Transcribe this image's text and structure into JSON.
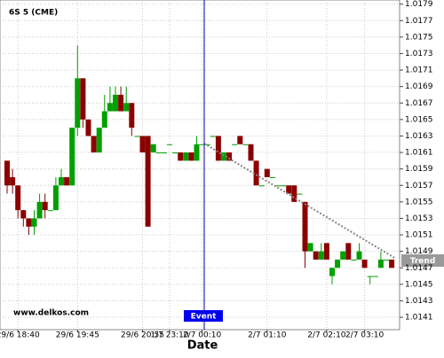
{
  "chart_data": {
    "type": "candlestick",
    "title": "6S 5 (CME)",
    "x_label": "Date",
    "watermark": "www.delkos.com",
    "event_label": "Event",
    "trend_label": "Trend",
    "up_color": "#00a000",
    "down_color": "#8b0000",
    "grid": true,
    "categories": [
      null,
      null,
      "29/6 18:40",
      null,
      null,
      null,
      null,
      null,
      null,
      null,
      null,
      null,
      null,
      "29/6 19:45",
      null,
      null,
      null,
      null,
      null,
      null,
      null,
      null,
      null,
      null,
      null,
      "29/6 20:55",
      null,
      null,
      null,
      null,
      "1/7 23:10",
      null,
      null,
      null,
      null,
      null,
      "2/7 00:10",
      null,
      null,
      null,
      null,
      null,
      null,
      null,
      null,
      null,
      null,
      null,
      "2/7 01:10",
      null,
      null,
      null,
      null,
      null,
      null,
      null,
      null,
      null,
      null,
      "2/7 02:10",
      null,
      null,
      null,
      null,
      null,
      null,
      "2/7 03:10",
      null,
      null,
      null,
      null,
      null
    ],
    "open": [
      1.016,
      1.0158,
      1.0157,
      1.0154,
      1.0153,
      1.0152,
      1.0153,
      1.0155,
      1.0154,
      1.0154,
      1.0157,
      1.0158,
      1.0157,
      1.0164,
      1.017,
      1.0165,
      1.0163,
      1.0161,
      1.0164,
      1.0166,
      1.0166,
      1.0168,
      1.0166,
      1.0167,
      1.0163,
      1.0163,
      1.0163,
      1.0161,
      1.0161,
      1.0161,
      1.0162,
      1.0161,
      1.0161,
      1.016,
      1.0161,
      1.016,
      1.0162,
      1.0162,
      1.0163,
      1.0163,
      1.016,
      1.0161,
      1.0162,
      1.0163,
      1.0162,
      1.0162,
      1.016,
      1.0157,
      1.0159,
      1.0158,
      1.0157,
      1.0157,
      1.0157,
      1.0157,
      1.0156,
      1.0155,
      1.0149,
      1.0149,
      1.0148,
      1.015,
      1.0146,
      1.0147,
      1.0148,
      1.015,
      1.0148,
      1.0148,
      1.0148,
      1.0146,
      1.0146,
      1.0147,
      1.0148,
      1.0148
    ],
    "high": [
      1.016,
      1.0159,
      1.0157,
      1.0154,
      1.0153,
      1.0154,
      1.0156,
      1.0156,
      1.0154,
      1.0158,
      1.0159,
      1.0158,
      1.0164,
      1.0174,
      1.017,
      1.0165,
      1.0163,
      1.0164,
      1.0168,
      1.0169,
      1.0169,
      1.0169,
      1.0169,
      1.0167,
      1.0163,
      1.0163,
      1.0163,
      1.0162,
      1.0161,
      1.0161,
      1.0162,
      1.0161,
      1.0161,
      1.0161,
      1.0161,
      1.0163,
      1.0162,
      1.0162,
      1.0163,
      1.0163,
      1.0161,
      1.0161,
      1.0162,
      1.0163,
      1.0162,
      1.0162,
      1.016,
      1.0157,
      1.0159,
      1.0158,
      1.0157,
      1.0157,
      1.0157,
      1.0157,
      1.0156,
      1.0155,
      1.015,
      1.0149,
      1.015,
      1.015,
      1.0147,
      1.0148,
      1.0149,
      1.015,
      1.0148,
      1.015,
      1.0148,
      1.0146,
      1.0146,
      1.0149,
      1.0148,
      1.0148
    ],
    "low": [
      1.0156,
      1.0156,
      1.0153,
      1.0152,
      1.0151,
      1.0151,
      1.0153,
      1.0153,
      1.0154,
      1.0154,
      1.0157,
      1.0157,
      1.0157,
      1.0163,
      1.0164,
      1.0163,
      1.0161,
      1.0161,
      1.0164,
      1.0166,
      1.0166,
      1.0166,
      1.0166,
      1.0163,
      1.0163,
      1.0161,
      1.0152,
      1.0161,
      1.0161,
      1.0161,
      1.0162,
      1.0161,
      1.016,
      1.016,
      1.016,
      1.016,
      1.0162,
      1.0162,
      1.0163,
      1.016,
      1.016,
      1.016,
      1.0162,
      1.0162,
      1.0162,
      1.016,
      1.0157,
      1.0157,
      1.0158,
      1.0158,
      1.0157,
      1.0157,
      1.0156,
      1.0155,
      1.0156,
      1.0147,
      1.0149,
      1.0148,
      1.0148,
      1.0148,
      1.0145,
      1.0147,
      1.0148,
      1.0148,
      1.0148,
      1.0148,
      1.0147,
      1.0145,
      1.0146,
      1.0147,
      1.0148,
      1.0147
    ],
    "close": [
      1.0157,
      1.0157,
      1.0154,
      1.0153,
      1.0152,
      1.0153,
      1.0155,
      1.0154,
      1.0154,
      1.0157,
      1.0158,
      1.0157,
      1.0164,
      1.017,
      1.0165,
      1.0163,
      1.0161,
      1.0164,
      1.0166,
      1.0167,
      1.0168,
      1.0166,
      1.0167,
      1.0164,
      1.0163,
      1.0161,
      1.0152,
      1.0162,
      1.0161,
      1.0161,
      1.0162,
      1.0161,
      1.016,
      1.0161,
      1.016,
      1.0162,
      1.0162,
      1.0162,
      1.0163,
      1.016,
      1.0161,
      1.016,
      1.0162,
      1.0162,
      1.0162,
      1.016,
      1.0157,
      1.0157,
      1.0158,
      1.0158,
      1.0157,
      1.0157,
      1.0156,
      1.0155,
      1.0156,
      1.0149,
      1.015,
      1.0148,
      1.0149,
      1.0148,
      1.0147,
      1.0148,
      1.0149,
      1.0148,
      1.0148,
      1.0149,
      1.0147,
      1.0146,
      1.0146,
      1.0148,
      1.0148,
      1.0147
    ],
    "ylim": [
      1.01395,
      1.01795
    ],
    "yticks": [
      1.0141,
      1.0143,
      1.0145,
      1.0147,
      1.0149,
      1.0151,
      1.0153,
      1.0155,
      1.0157,
      1.0159,
      1.0161,
      1.0163,
      1.0165,
      1.0167,
      1.0169,
      1.0171,
      1.0173,
      1.0175,
      1.0177,
      1.0179
    ]
  }
}
